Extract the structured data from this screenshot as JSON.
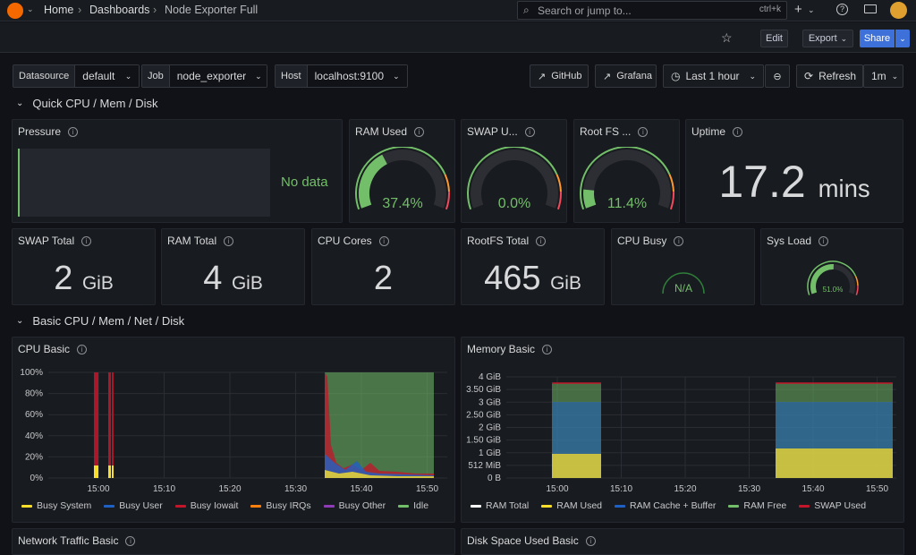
{
  "breadcrumb": {
    "home": "Home",
    "dashboards": "Dashboards",
    "current": "Node Exporter Full"
  },
  "search": {
    "placeholder": "Search or jump to...",
    "shortcut": "ctrl+k"
  },
  "toolbar": {
    "edit": "Edit",
    "export": "Export",
    "share": "Share"
  },
  "variables": [
    {
      "label": "Datasource",
      "value": "default"
    },
    {
      "label": "Job",
      "value": "node_exporter"
    },
    {
      "label": "Host",
      "value": "localhost:9100"
    }
  ],
  "links": {
    "github": "GitHub",
    "grafana": "Grafana"
  },
  "time": {
    "range": "Last 1 hour",
    "refresh": "Refresh",
    "interval": "1m"
  },
  "rows": {
    "quick": "Quick CPU / Mem / Disk",
    "basic": "Basic CPU / Mem / Net / Disk"
  },
  "panels": {
    "pressure": {
      "title": "Pressure",
      "nodata": "No data"
    },
    "ram_used": {
      "title": "RAM Used",
      "value": "37.4%",
      "level": 0.374
    },
    "swap_used": {
      "title": "SWAP U...",
      "value": "0.0%",
      "level": 0.0
    },
    "root_fs": {
      "title": "Root FS ...",
      "value": "11.4%",
      "level": 0.114
    },
    "uptime": {
      "title": "Uptime",
      "value": "17.2",
      "unit": "mins"
    },
    "swap_total": {
      "title": "SWAP Total",
      "value": "2",
      "unit": "GiB"
    },
    "ram_total": {
      "title": "RAM Total",
      "value": "4",
      "unit": "GiB"
    },
    "cpu_cores": {
      "title": "CPU Cores",
      "value": "2"
    },
    "rootfs_total": {
      "title": "RootFS Total",
      "value": "465",
      "unit": "GiB"
    },
    "cpu_busy": {
      "title": "CPU Busy",
      "value": "N/A"
    },
    "sys_load": {
      "title": "Sys Load",
      "value": "51.0%",
      "level": 0.51
    },
    "cpu_basic": {
      "title": "CPU Basic"
    },
    "memory_basic": {
      "title": "Memory Basic"
    },
    "network": {
      "title": "Network Traffic Basic"
    },
    "disk": {
      "title": "Disk Space Used Basic"
    }
  },
  "colors": {
    "green": "#73bf69",
    "yellow": "#fade2a",
    "red": "#f2495c",
    "blue": "#5794f2",
    "orange": "#ff9830",
    "purple": "#b877d9",
    "accent": "#3d71d9"
  },
  "chart_data": [
    {
      "type": "area",
      "title": "CPU Basic",
      "x": [
        "15:00",
        "15:10",
        "15:20",
        "15:30",
        "15:40",
        "15:50"
      ],
      "y_ticks": [
        "100%",
        "80%",
        "60%",
        "40%",
        "20%",
        "0%"
      ],
      "ylim": [
        0,
        100
      ],
      "series": [
        {
          "name": "Busy System",
          "color": "#fade2a"
        },
        {
          "name": "Busy User",
          "color": "#1f60c4"
        },
        {
          "name": "Busy Iowait",
          "color": "#c4162a"
        },
        {
          "name": "Busy IRQs",
          "color": "#ff7f0e"
        },
        {
          "name": "Busy Other",
          "color": "#8f3bb8"
        },
        {
          "name": "Idle",
          "color": "#73bf69"
        }
      ]
    },
    {
      "type": "area",
      "title": "Memory Basic",
      "x": [
        "15:00",
        "15:10",
        "15:20",
        "15:30",
        "15:40",
        "15:50"
      ],
      "y_ticks": [
        "4 GiB",
        "3.50 GiB",
        "3 GiB",
        "2.50 GiB",
        "2 GiB",
        "1.50 GiB",
        "1 GiB",
        "512 MiB",
        "0 B"
      ],
      "series": [
        {
          "name": "RAM Total",
          "color": "#ffffff"
        },
        {
          "name": "RAM Used",
          "color": "#fade2a"
        },
        {
          "name": "RAM Cache + Buffer",
          "color": "#1f60c4"
        },
        {
          "name": "RAM Free",
          "color": "#73bf69"
        },
        {
          "name": "SWAP Used",
          "color": "#c4162a"
        }
      ]
    }
  ]
}
